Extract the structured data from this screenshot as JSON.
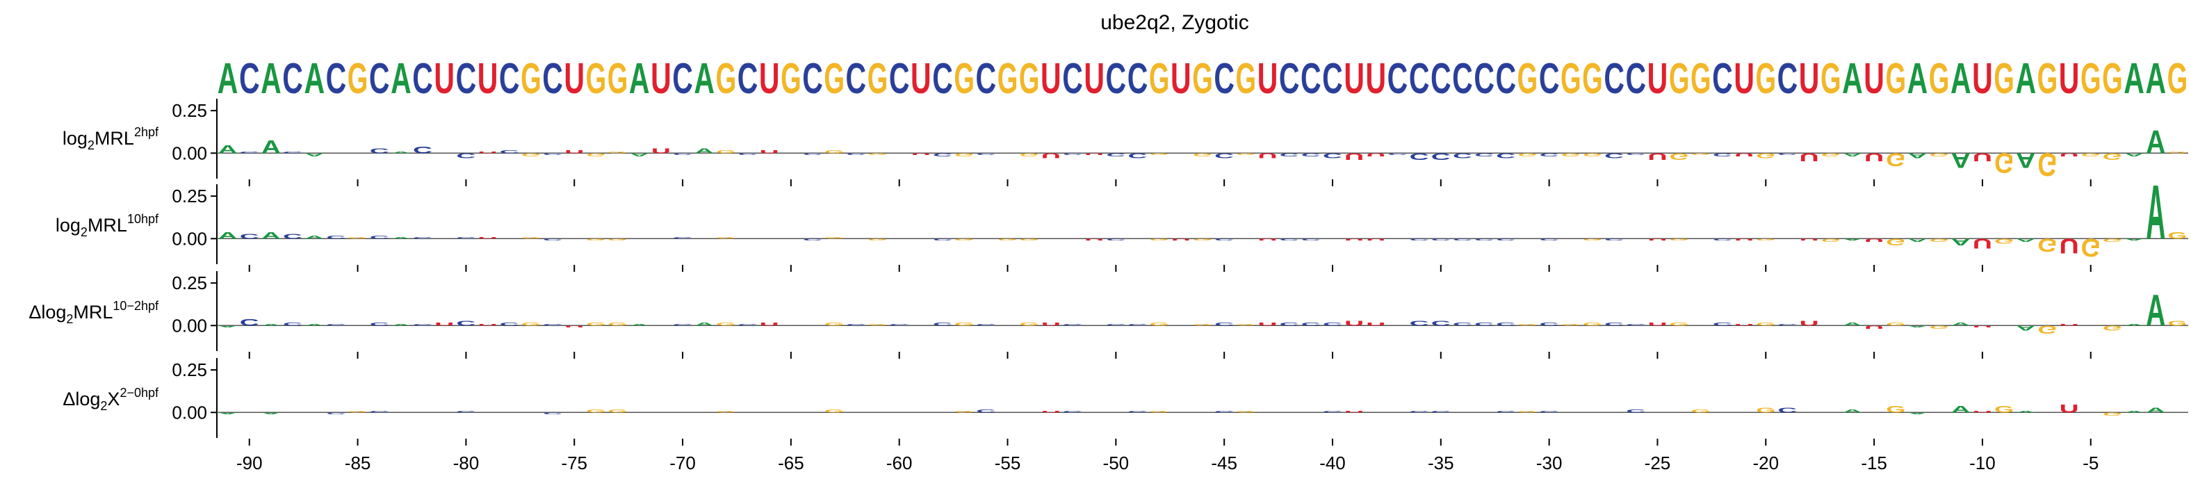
{
  "chart_data": {
    "type": "sequence-logo",
    "title": "ube2q2, Zygotic",
    "sequence": "ACACACGCACUCUCGCUGGAUCAGCUGCGCGCUCGCGGUCUCCGUGCGUCCCUUCCCCCCGCGGCCUGGCUGCUGAUGAGAUGAGUGGAAG",
    "x_start": -91,
    "x_end": -1,
    "x_ticks": [
      -90,
      -85,
      -80,
      -75,
      -70,
      -65,
      -60,
      -55,
      -50,
      -45,
      -40,
      -35,
      -30,
      -25,
      -20,
      -15,
      -10,
      -5
    ],
    "nucleotide_colors": {
      "A": "#1a9641",
      "C": "#2a3f99",
      "G": "#f2b627",
      "U": "#e0202e"
    },
    "panels": [
      {
        "label_main": "log",
        "label_sub": "2",
        "label_tail": "MRL",
        "label_sup": "2hpf",
        "y_ticks": [
          0.25,
          0.0
        ],
        "y_tick_labels": [
          "0.25",
          "0.00"
        ],
        "ylim": [
          -0.15,
          0.32
        ],
        "values": [
          0.05,
          0.01,
          0.08,
          0.01,
          -0.02,
          0.0,
          0.0,
          0.03,
          0.01,
          0.04,
          0.0,
          -0.03,
          0.01,
          0.02,
          -0.02,
          -0.01,
          0.02,
          -0.02,
          0.01,
          -0.02,
          0.03,
          -0.01,
          0.03,
          0.02,
          -0.01,
          0.02,
          0.0,
          -0.01,
          0.02,
          -0.01,
          -0.01,
          0.0,
          -0.01,
          -0.02,
          -0.02,
          -0.01,
          0.0,
          -0.02,
          -0.03,
          -0.01,
          -0.01,
          -0.02,
          -0.03,
          -0.01,
          0.0,
          -0.02,
          -0.03,
          -0.01,
          -0.03,
          -0.02,
          -0.02,
          -0.03,
          -0.04,
          -0.02,
          -0.01,
          -0.04,
          -0.04,
          -0.03,
          -0.02,
          -0.03,
          -0.02,
          -0.02,
          -0.02,
          -0.02,
          -0.03,
          -0.01,
          -0.04,
          -0.04,
          -0.01,
          -0.02,
          -0.02,
          -0.03,
          -0.01,
          -0.05,
          -0.02,
          -0.02,
          -0.05,
          -0.08,
          -0.03,
          -0.02,
          -0.09,
          -0.05,
          -0.12,
          -0.09,
          -0.14,
          -0.02,
          -0.02,
          -0.04,
          -0.02,
          0.14,
          0.01
        ]
      },
      {
        "label_main": "log",
        "label_sub": "2",
        "label_tail": "MRL",
        "label_sup": "10hpf",
        "y_ticks": [
          0.25,
          0.0
        ],
        "y_tick_labels": [
          "0.25",
          "0.00"
        ],
        "ylim": [
          -0.15,
          0.32
        ],
        "values": [
          0.04,
          0.03,
          0.04,
          0.03,
          0.02,
          0.02,
          0.01,
          0.02,
          0.01,
          0.01,
          0.0,
          0.01,
          0.01,
          0.0,
          0.01,
          -0.01,
          0.0,
          -0.01,
          -0.01,
          0.0,
          0.0,
          0.01,
          0.0,
          0.01,
          0.0,
          0.0,
          0.0,
          -0.01,
          0.01,
          0.0,
          -0.01,
          0.0,
          0.0,
          -0.01,
          -0.01,
          0.0,
          -0.01,
          -0.01,
          0.0,
          0.0,
          -0.01,
          -0.01,
          0.0,
          -0.01,
          -0.01,
          -0.01,
          -0.01,
          0.0,
          -0.01,
          -0.01,
          -0.01,
          0.0,
          -0.01,
          -0.01,
          0.0,
          -0.01,
          -0.01,
          -0.01,
          -0.01,
          -0.01,
          0.0,
          -0.01,
          0.0,
          -0.01,
          -0.01,
          0.0,
          -0.01,
          -0.01,
          0.0,
          -0.01,
          -0.01,
          -0.01,
          0.0,
          -0.01,
          -0.02,
          -0.01,
          -0.02,
          -0.04,
          -0.02,
          -0.02,
          -0.04,
          -0.06,
          -0.03,
          -0.02,
          -0.08,
          -0.09,
          -0.11,
          -0.02,
          -0.01,
          0.33,
          0.04
        ]
      },
      {
        "label_main": "Δlog",
        "label_sub": "2",
        "label_tail": "MRL",
        "label_sup": "10−2hpf",
        "y_ticks": [
          0.25,
          0.0
        ],
        "y_tick_labels": [
          "0.25",
          "0.00"
        ],
        "ylim": [
          -0.15,
          0.32
        ],
        "values": [
          -0.01,
          0.04,
          0.01,
          0.02,
          0.01,
          0.01,
          0.0,
          0.02,
          0.01,
          0.01,
          0.02,
          0.03,
          0.01,
          0.02,
          0.02,
          0.01,
          -0.01,
          0.02,
          0.02,
          0.01,
          0.0,
          0.01,
          0.02,
          0.02,
          0.01,
          0.02,
          0.0,
          0.0,
          0.02,
          0.01,
          0.01,
          0.01,
          0.0,
          0.02,
          0.02,
          0.01,
          0.0,
          0.02,
          0.02,
          0.01,
          0.0,
          0.01,
          0.01,
          0.02,
          0.0,
          0.01,
          0.02,
          0.01,
          0.02,
          0.02,
          0.02,
          0.02,
          0.03,
          0.02,
          0.0,
          0.03,
          0.03,
          0.02,
          0.02,
          0.02,
          0.01,
          0.02,
          0.01,
          0.02,
          0.02,
          0.01,
          0.02,
          0.02,
          0.0,
          0.02,
          0.01,
          0.02,
          0.01,
          0.03,
          0.0,
          0.02,
          -0.02,
          0.02,
          -0.01,
          -0.02,
          0.02,
          -0.01,
          0.0,
          -0.03,
          -0.05,
          0.01,
          0.0,
          -0.03,
          0.01,
          0.19,
          0.03
        ]
      },
      {
        "label_main": "Δlog",
        "label_sub": "2",
        "label_tail": "X",
        "label_sup": "2−0hpf",
        "y_ticks": [
          0.25,
          0.0
        ],
        "y_tick_labels": [
          "0.25",
          "0.00"
        ],
        "ylim": [
          -0.15,
          0.32
        ],
        "values": [
          -0.01,
          0.0,
          -0.01,
          0.0,
          0.0,
          -0.01,
          0.01,
          0.01,
          0.0,
          0.0,
          0.0,
          0.01,
          0.0,
          0.0,
          0.0,
          -0.01,
          0.0,
          0.02,
          0.02,
          0.0,
          0.0,
          0.0,
          0.0,
          0.01,
          0.0,
          0.0,
          0.0,
          0.0,
          0.02,
          0.0,
          0.0,
          0.0,
          0.0,
          0.0,
          0.01,
          0.02,
          0.0,
          0.0,
          0.01,
          0.01,
          0.0,
          0.0,
          0.01,
          0.01,
          0.0,
          0.0,
          0.01,
          0.01,
          0.0,
          0.0,
          0.0,
          0.01,
          0.01,
          0.0,
          0.0,
          0.01,
          0.01,
          0.0,
          0.0,
          0.01,
          0.01,
          0.01,
          0.0,
          0.0,
          0.0,
          0.02,
          0.0,
          0.0,
          0.02,
          0.0,
          0.0,
          0.03,
          0.03,
          0.0,
          0.0,
          0.02,
          0.0,
          0.04,
          -0.01,
          0.0,
          0.04,
          0.01,
          0.04,
          0.01,
          0.0,
          0.05,
          0.0,
          -0.02,
          0.01,
          0.03,
          0.0
        ]
      }
    ],
    "grid": false
  }
}
